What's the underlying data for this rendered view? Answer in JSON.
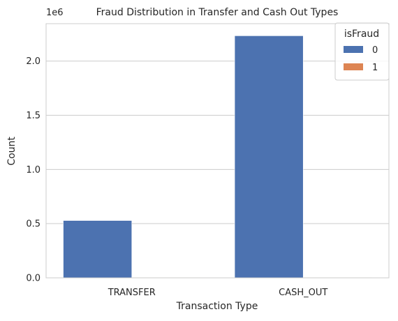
{
  "chart_data": {
    "type": "bar",
    "title": "Fraud Distribution in Transfer and Cash Out Types",
    "xlabel": "Transaction Type",
    "ylabel": "Count",
    "offset_label": "1e6",
    "categories": [
      "TRANSFER",
      "CASH_OUT"
    ],
    "series": [
      {
        "name": "0",
        "values": [
          528812,
          2233384
        ],
        "color": "#4c72b0"
      },
      {
        "name": "1",
        "values": [
          4097,
          4116
        ],
        "color": "#dd8452"
      }
    ],
    "ylim": [
      0,
      2345053
    ],
    "yticks": [
      {
        "value": 0,
        "label": "0.0"
      },
      {
        "value": 500000,
        "label": "0.5"
      },
      {
        "value": 1000000,
        "label": "1.0"
      },
      {
        "value": 1500000,
        "label": "1.5"
      },
      {
        "value": 2000000,
        "label": "2.0"
      }
    ],
    "grid": true,
    "legend": {
      "title": "isFraud",
      "placement": "top-right"
    }
  }
}
